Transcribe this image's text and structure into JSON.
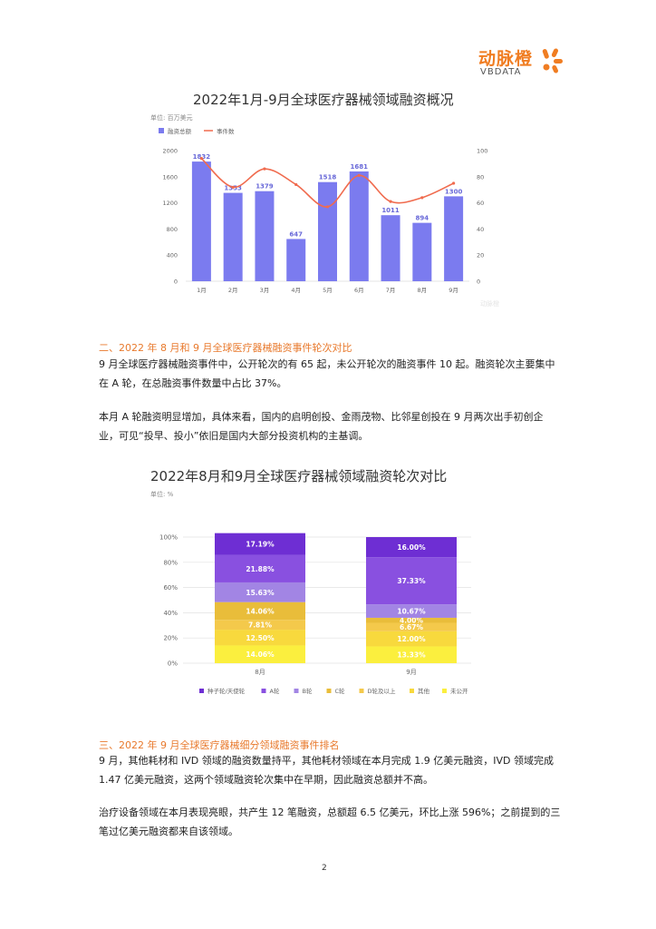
{
  "logo": {
    "cn": "动脉橙",
    "en": "VBDATA"
  },
  "chart1": {
    "title": "2022年1月-9月全球医疗器械领域融资概况",
    "unit": "单位: 百万美元",
    "legend": {
      "bar": "融资总额",
      "line": "事件数"
    },
    "watermark": "动脉橙"
  },
  "section2": {
    "heading": "二、2022 年 8 月和 9 月全球医疗器械融资事件轮次对比",
    "para1": "9 月全球医疗器械融资事件中，公开轮次的有 65 起，未公开轮次的融资事件 10 起。融资轮次主要集中在 A 轮，在总融资事件数量中占比 37%。",
    "para2": "本月 A 轮融资明显增加，具体来看，国内的启明创投、金雨茂物、比邻星创投在 9 月两次出手初创企业，可见“投早、投小”依旧是国内大部分投资机构的主基调。"
  },
  "chart2": {
    "title": "2022年8月和9月全球医疗器械领域融资轮次对比",
    "unit": "单位: %"
  },
  "section3": {
    "heading": "三、2022 年 9 月全球医疗器械细分领域融资事件排名",
    "para1": "9 月，其他耗材和 IVD 领域的融资数量持平，其他耗材领域在本月完成 1.9 亿美元融资，IVD 领域完成 1.47 亿美元融资，这两个领域融资轮次集中在早期，因此融资总额并不高。",
    "para2": "治疗设备领域在本月表现亮眼，共产生 12 笔融资，总额超 6.5 亿美元，环比上涨 596%；之前提到的三笔过亿美元融资都来自该领域。"
  },
  "page_number": "2",
  "colors": {
    "bar": "#7b7bef",
    "line": "#f06b4e",
    "accent": "#e8792c"
  },
  "chart_data": [
    {
      "type": "bar",
      "title": "2022年1月-9月全球医疗器械领域融资概况",
      "categories": [
        "1月",
        "2月",
        "3月",
        "4月",
        "5月",
        "6月",
        "7月",
        "8月",
        "9月"
      ],
      "series": [
        {
          "name": "融资总额",
          "values": [
            1832,
            1353,
            1379,
            647,
            1518,
            1681,
            1011,
            894,
            1300
          ]
        },
        {
          "name": "事件数",
          "type": "line",
          "axis": "right",
          "values": [
            94,
            72,
            86,
            74,
            57,
            81,
            61,
            64,
            75
          ]
        }
      ],
      "ylim": [
        0,
        2000
      ],
      "y_ticks": [
        0,
        400,
        800,
        1200,
        1600,
        2000
      ],
      "y2lim": [
        0,
        100
      ],
      "y2_ticks": [
        0,
        20,
        40,
        60,
        80,
        100
      ],
      "legend": "top-left",
      "grid": false
    },
    {
      "type": "bar",
      "stacked": true,
      "title": "2022年8月和9月全球医疗器械领域融资轮次对比",
      "categories": [
        "8月",
        "9月"
      ],
      "y_ticks": [
        "0%",
        "20%",
        "40%",
        "60%",
        "80%",
        "100%"
      ],
      "ylim": [
        0,
        100
      ],
      "legend": "bottom",
      "grid": true,
      "series": [
        {
          "name": "未公开",
          "color": "#fbef3e",
          "values": [
            14.06,
            13.33
          ],
          "labels": [
            "14.06%",
            "13.33%"
          ]
        },
        {
          "name": "其他",
          "color": "#f8d93d",
          "values": [
            12.5,
            12.0
          ],
          "labels": [
            "12.50%",
            "12.00%"
          ]
        },
        {
          "name": "D轮及以上",
          "color": "#f4c94b",
          "values": [
            7.81,
            6.67
          ],
          "labels": [
            "7.81%",
            "6.67%"
          ]
        },
        {
          "name": "C轮",
          "color": "#e9bd3a",
          "values": [
            14.06,
            4.0
          ],
          "labels": [
            "14.06%",
            "4.00%"
          ]
        },
        {
          "name": "B轮",
          "color": "#a285e4",
          "values": [
            15.63,
            10.67
          ],
          "labels": [
            "15.63%",
            "10.67%"
          ]
        },
        {
          "name": "A轮",
          "color": "#8950e0",
          "values": [
            21.88,
            37.33
          ],
          "labels": [
            "21.88%",
            "37.33%"
          ]
        },
        {
          "name": "种子轮/天使轮",
          "color": "#6e2ed3",
          "values": [
            17.19,
            16.0
          ],
          "labels": [
            "17.19%",
            "16.00%"
          ]
        }
      ],
      "legend_order": [
        "种子轮/天使轮",
        "A轮",
        "B轮",
        "C轮",
        "D轮及以上",
        "其他",
        "未公开"
      ]
    }
  ]
}
